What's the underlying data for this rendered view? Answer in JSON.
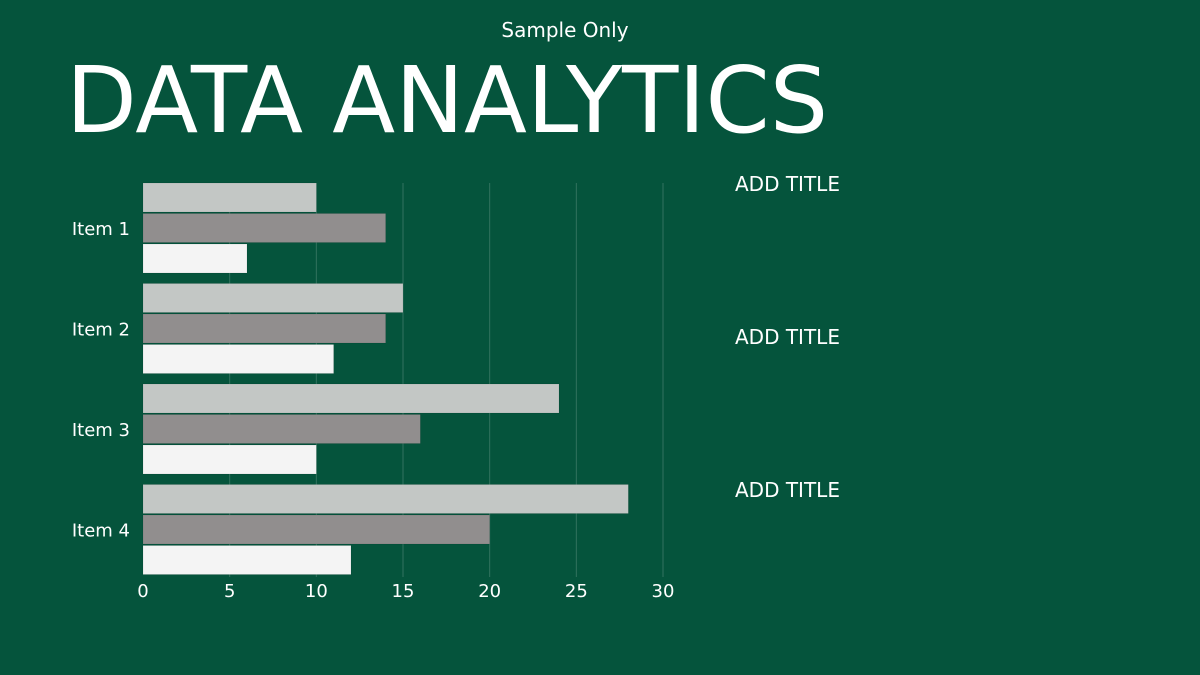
{
  "header": {
    "subtitle": "Sample Only",
    "title": "DATA ANALYTICS"
  },
  "side_titles": [
    "ADD TITLE",
    "ADD TITLE",
    "ADD TITLE"
  ],
  "colors": {
    "background": "#05543c",
    "series_1": "#c3c7c5",
    "series_2": "#918e8e",
    "series_3": "#f4f4f4",
    "text": "#ffffff"
  },
  "chart_data": {
    "type": "bar",
    "orientation": "horizontal",
    "categories": [
      "Item 1",
      "Item 2",
      "Item 3",
      "Item 4"
    ],
    "series": [
      {
        "values": [
          10,
          15,
          24,
          28
        ]
      },
      {
        "values": [
          14,
          14,
          16,
          20
        ]
      },
      {
        "values": [
          6,
          11,
          10,
          12
        ]
      }
    ],
    "xticks": [
      0,
      5,
      10,
      15,
      20,
      25,
      30
    ],
    "xlim": [
      0,
      30
    ],
    "grid": "vertical",
    "legend": "none"
  }
}
